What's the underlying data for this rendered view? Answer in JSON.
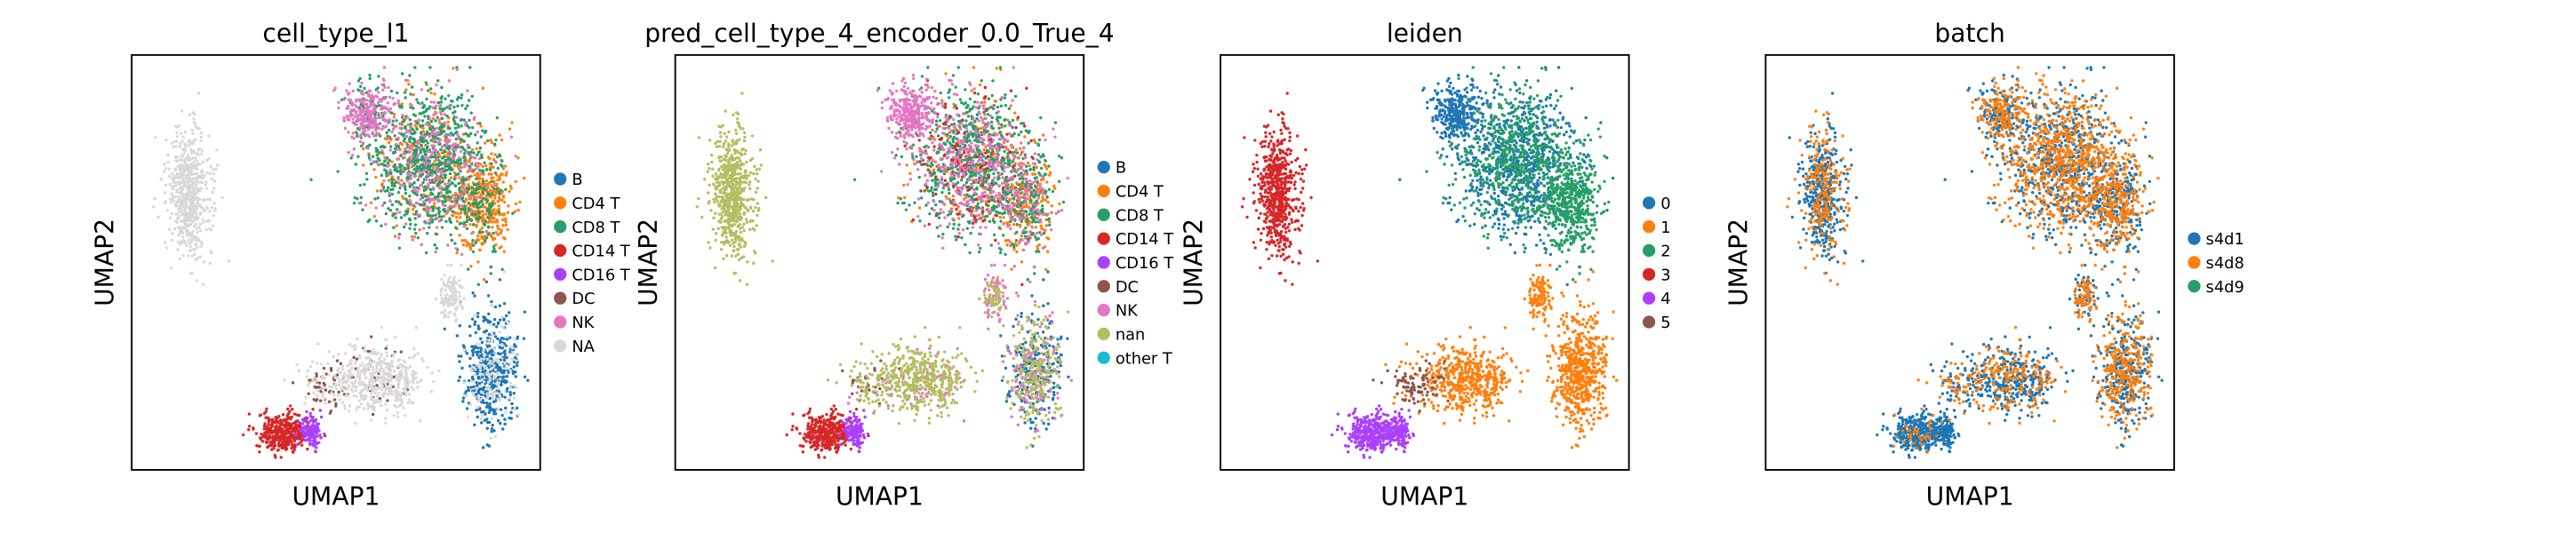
{
  "panels": [
    {
      "title": "cell_type_l1",
      "xlabel": "UMAP1",
      "ylabel": "UMAP2",
      "legend": [
        {
          "label": "B",
          "color": "#1f77b4"
        },
        {
          "label": "CD4 T",
          "color": "#ff7f0e"
        },
        {
          "label": "CD8 T",
          "color": "#279e68"
        },
        {
          "label": "CD14 T",
          "color": "#d62728"
        },
        {
          "label": "CD16 T",
          "color": "#aa40fc"
        },
        {
          "label": "DC",
          "color": "#8c564b"
        },
        {
          "label": "NK",
          "color": "#e377c2"
        },
        {
          "label": "NA",
          "color": "#d9d9d9"
        }
      ]
    },
    {
      "title": "pred_cell_type_4_encoder_0.0_True_4",
      "xlabel": "UMAP1",
      "ylabel": "UMAP2",
      "legend": [
        {
          "label": "B",
          "color": "#1f77b4"
        },
        {
          "label": "CD4 T",
          "color": "#ff7f0e"
        },
        {
          "label": "CD8 T",
          "color": "#279e68"
        },
        {
          "label": "CD14 T",
          "color": "#d62728"
        },
        {
          "label": "CD16 T",
          "color": "#aa40fc"
        },
        {
          "label": "DC",
          "color": "#8c564b"
        },
        {
          "label": "NK",
          "color": "#e377c2"
        },
        {
          "label": "nan",
          "color": "#b5bd61"
        },
        {
          "label": "other T",
          "color": "#17becf"
        }
      ]
    },
    {
      "title": "leiden",
      "xlabel": "UMAP1",
      "ylabel": "UMAP2",
      "legend": [
        {
          "label": "0",
          "color": "#1f77b4"
        },
        {
          "label": "1",
          "color": "#ff7f0e"
        },
        {
          "label": "2",
          "color": "#279e68"
        },
        {
          "label": "3",
          "color": "#d62728"
        },
        {
          "label": "4",
          "color": "#aa40fc"
        },
        {
          "label": "5",
          "color": "#8c564b"
        }
      ]
    },
    {
      "title": "batch",
      "xlabel": "UMAP1",
      "ylabel": "UMAP2",
      "legend": [
        {
          "label": "s4d1",
          "color": "#1f77b4"
        },
        {
          "label": "s4d8",
          "color": "#ff7f0e"
        },
        {
          "label": "s4d9",
          "color": "#279e68"
        }
      ]
    }
  ],
  "chart_data": [
    {
      "type": "scatter",
      "title": "cell_type_l1",
      "xlabel": "UMAP1",
      "ylabel": "UMAP2",
      "grid": false,
      "legend_position": "right",
      "series": [
        {
          "name": "B"
        },
        {
          "name": "CD4 T"
        },
        {
          "name": "CD8 T"
        },
        {
          "name": "CD14 T"
        },
        {
          "name": "CD16 T"
        },
        {
          "name": "DC"
        },
        {
          "name": "NK"
        },
        {
          "name": "NA"
        }
      ]
    },
    {
      "type": "scatter",
      "title": "pred_cell_type_4_encoder_0.0_True_4",
      "xlabel": "UMAP1",
      "ylabel": "UMAP2",
      "grid": false,
      "legend_position": "right",
      "series": [
        {
          "name": "B"
        },
        {
          "name": "CD4 T"
        },
        {
          "name": "CD8 T"
        },
        {
          "name": "CD14 T"
        },
        {
          "name": "CD16 T"
        },
        {
          "name": "DC"
        },
        {
          "name": "NK"
        },
        {
          "name": "nan"
        },
        {
          "name": "other T"
        }
      ]
    },
    {
      "type": "scatter",
      "title": "leiden",
      "xlabel": "UMAP1",
      "ylabel": "UMAP2",
      "grid": false,
      "legend_position": "right",
      "series": [
        {
          "name": "0"
        },
        {
          "name": "1"
        },
        {
          "name": "2"
        },
        {
          "name": "3"
        },
        {
          "name": "4"
        },
        {
          "name": "5"
        }
      ]
    },
    {
      "type": "scatter",
      "title": "batch",
      "xlabel": "UMAP1",
      "ylabel": "UMAP2",
      "grid": false,
      "legend_position": "right",
      "series": [
        {
          "name": "s4d1"
        },
        {
          "name": "s4d8"
        },
        {
          "name": "s4d9"
        }
      ]
    }
  ]
}
